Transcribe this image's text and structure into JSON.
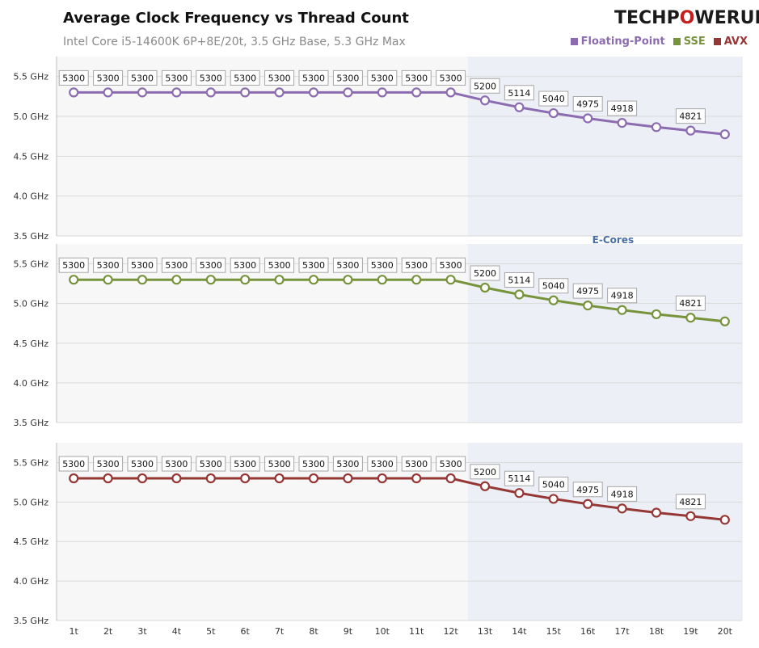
{
  "header": {
    "title": "Average Clock Frequency vs Thread Count",
    "subtitle": "Intel Core i5-14600K 6P+8E/20t, 3.5 GHz Base, 5.3 GHz Max",
    "logo_text": "TECHPOWERUP"
  },
  "legend": [
    {
      "name": "Floating-Point",
      "color": "#8c6bb1"
    },
    {
      "name": "SSE",
      "color": "#77933c"
    },
    {
      "name": "AVX",
      "color": "#953735"
    }
  ],
  "chart_data": {
    "type": "line",
    "title": "Average Clock Frequency vs Thread Count",
    "subtitle": "Intel Core i5-14600K 6P+8E/20t, 3.5 GHz Base, 5.3 GHz Max",
    "categories": [
      "1t",
      "2t",
      "3t",
      "4t",
      "5t",
      "6t",
      "7t",
      "8t",
      "9t",
      "10t",
      "11t",
      "12t",
      "13t",
      "14t",
      "15t",
      "16t",
      "17t",
      "18t",
      "19t",
      "20t"
    ],
    "y_ticks": [
      "3.5 GHz",
      "4.0 GHz",
      "4.5 GHz",
      "5.0 GHz",
      "5.5 GHz"
    ],
    "ylim": [
      3.5,
      5.75
    ],
    "region_label": "E-Cores",
    "region_start_index": 12,
    "grid": true,
    "legend_position": "top-right",
    "panels": [
      {
        "name": "Floating-Point",
        "color": "#8c6bb1",
        "values": [
          5.3,
          5.3,
          5.3,
          5.3,
          5.3,
          5.3,
          5.3,
          5.3,
          5.3,
          5.3,
          5.3,
          5.3,
          5.2,
          5.114,
          5.04,
          4.975,
          4.918,
          4.865,
          4.821,
          4.775
        ],
        "labels": [
          "5300",
          "5300",
          "5300",
          "5300",
          "5300",
          "5300",
          "5300",
          "5300",
          "5300",
          "5300",
          "5300",
          "5300",
          "5200",
          "5114",
          "5040",
          "4975",
          "4918",
          "",
          "4821",
          ""
        ]
      },
      {
        "name": "SSE",
        "color": "#77933c",
        "values": [
          5.3,
          5.3,
          5.3,
          5.3,
          5.3,
          5.3,
          5.3,
          5.3,
          5.3,
          5.3,
          5.3,
          5.3,
          5.2,
          5.114,
          5.04,
          4.975,
          4.918,
          4.865,
          4.821,
          4.775
        ],
        "labels": [
          "5300",
          "5300",
          "5300",
          "5300",
          "5300",
          "5300",
          "5300",
          "5300",
          "5300",
          "5300",
          "5300",
          "5300",
          "5200",
          "5114",
          "5040",
          "4975",
          "4918",
          "",
          "4821",
          ""
        ]
      },
      {
        "name": "AVX",
        "color": "#953735",
        "values": [
          5.3,
          5.3,
          5.3,
          5.3,
          5.3,
          5.3,
          5.3,
          5.3,
          5.3,
          5.3,
          5.3,
          5.3,
          5.2,
          5.114,
          5.04,
          4.975,
          4.918,
          4.865,
          4.821,
          4.775
        ],
        "labels": [
          "5300",
          "5300",
          "5300",
          "5300",
          "5300",
          "5300",
          "5300",
          "5300",
          "5300",
          "5300",
          "5300",
          "5300",
          "5200",
          "5114",
          "5040",
          "4975",
          "4918",
          "",
          "4821",
          ""
        ]
      }
    ]
  }
}
